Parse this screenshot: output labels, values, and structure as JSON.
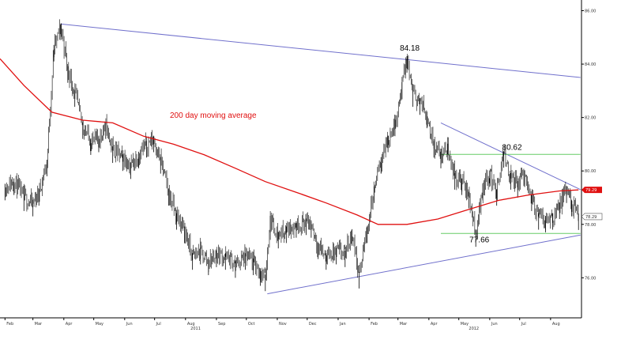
{
  "chart_data": {
    "type": "candlestick",
    "title": "",
    "xlabel": "",
    "ylabel": "",
    "ylim": [
      74.5,
      86.4
    ],
    "y_ticks": [
      "86.00",
      "84.00",
      "82.00",
      "80.00",
      "78.00",
      "76.00"
    ],
    "x_ticks": [
      "Feb",
      "Mar",
      "Apr",
      "May",
      "Jun",
      "Jul",
      "Aug",
      "Sep",
      "Oct",
      "Nov",
      "Dec",
      "Jan",
      "Feb",
      "Mar",
      "Apr",
      "May",
      "Jun",
      "Jul",
      "Aug"
    ],
    "years": [
      "2011",
      "2012"
    ],
    "grid": false,
    "legend": "none",
    "series": [
      {
        "kind": "price",
        "points": [
          [
            "2011-02-01",
            79.4
          ],
          [
            "2011-02-10",
            79.6
          ],
          [
            "2011-02-20",
            79.0
          ],
          [
            "2011-03-01",
            78.8
          ],
          [
            "2011-03-07",
            79.2
          ],
          [
            "2011-03-15",
            80.3
          ],
          [
            "2011-03-22",
            84.6
          ],
          [
            "2011-03-29",
            85.4
          ],
          [
            "2011-04-05",
            83.8
          ],
          [
            "2011-04-12",
            82.9
          ],
          [
            "2011-04-20",
            81.7
          ],
          [
            "2011-04-28",
            81.1
          ],
          [
            "2011-05-06",
            81.2
          ],
          [
            "2011-05-13",
            81.7
          ],
          [
            "2011-05-20",
            80.8
          ],
          [
            "2011-05-30",
            80.5
          ],
          [
            "2011-06-07",
            80.2
          ],
          [
            "2011-06-15",
            80.6
          ],
          [
            "2011-06-23",
            81.0
          ],
          [
            "2011-06-30",
            81.2
          ],
          [
            "2011-07-07",
            80.4
          ],
          [
            "2011-07-15",
            79.2
          ],
          [
            "2011-07-23",
            78.3
          ],
          [
            "2011-07-31",
            77.8
          ],
          [
            "2011-08-08",
            76.8
          ],
          [
            "2011-08-16",
            77.0
          ],
          [
            "2011-08-24",
            76.6
          ],
          [
            "2011-09-01",
            76.9
          ],
          [
            "2011-09-10",
            76.8
          ],
          [
            "2011-09-20",
            76.5
          ],
          [
            "2011-09-30",
            76.8
          ],
          [
            "2011-10-08",
            76.6
          ],
          [
            "2011-10-15",
            76.2
          ],
          [
            "2011-10-20",
            76.0
          ],
          [
            "2011-10-25",
            78.2
          ],
          [
            "2011-11-02",
            77.6
          ],
          [
            "2011-11-10",
            77.8
          ],
          [
            "2011-11-20",
            78.0
          ],
          [
            "2011-11-30",
            78.1
          ],
          [
            "2011-12-05",
            78.0
          ],
          [
            "2011-12-12",
            77.2
          ],
          [
            "2011-12-20",
            76.8
          ],
          [
            "2011-12-30",
            77.0
          ],
          [
            "2012-01-08",
            76.9
          ],
          [
            "2012-01-15",
            77.7
          ],
          [
            "2012-01-22",
            76.1
          ],
          [
            "2012-01-30",
            77.8
          ],
          [
            "2012-02-06",
            79.3
          ],
          [
            "2012-02-13",
            80.4
          ],
          [
            "2012-02-20",
            81.2
          ],
          [
            "2012-02-27",
            81.8
          ],
          [
            "2012-03-05",
            83.2
          ],
          [
            "2012-03-10",
            84.18
          ],
          [
            "2012-03-16",
            82.9
          ],
          [
            "2012-03-23",
            82.6
          ],
          [
            "2012-03-30",
            82.1
          ],
          [
            "2012-04-06",
            81.0
          ],
          [
            "2012-04-13",
            80.6
          ],
          [
            "2012-04-20",
            80.9
          ],
          [
            "2012-04-27",
            79.8
          ],
          [
            "2012-05-04",
            79.6
          ],
          [
            "2012-05-11",
            79.1
          ],
          [
            "2012-05-18",
            77.66
          ],
          [
            "2012-05-25",
            79.4
          ],
          [
            "2012-06-01",
            79.9
          ],
          [
            "2012-06-08",
            79.2
          ],
          [
            "2012-06-15",
            80.62
          ],
          [
            "2012-06-22",
            79.8
          ],
          [
            "2012-06-29",
            79.5
          ],
          [
            "2012-07-06",
            79.9
          ],
          [
            "2012-07-13",
            79.0
          ],
          [
            "2012-07-20",
            78.3
          ],
          [
            "2012-07-27",
            78.2
          ],
          [
            "2012-08-03",
            78.3
          ],
          [
            "2012-08-10",
            78.7
          ],
          [
            "2012-08-17",
            79.3
          ],
          [
            "2012-08-22",
            78.8
          ],
          [
            "2012-08-29",
            78.29
          ]
        ]
      },
      {
        "name": "200 day moving average",
        "kind": "sma",
        "color": "#e01010",
        "points": [
          [
            "2011-01-27",
            84.2
          ],
          [
            "2011-02-20",
            83.2
          ],
          [
            "2011-03-20",
            82.2
          ],
          [
            "2011-04-20",
            81.9
          ],
          [
            "2011-05-20",
            81.8
          ],
          [
            "2011-06-20",
            81.3
          ],
          [
            "2011-07-20",
            81.0
          ],
          [
            "2011-08-20",
            80.6
          ],
          [
            "2011-09-20",
            80.1
          ],
          [
            "2011-10-20",
            79.6
          ],
          [
            "2011-11-20",
            79.2
          ],
          [
            "2011-12-20",
            78.8
          ],
          [
            "2012-01-20",
            78.35
          ],
          [
            "2012-02-10",
            78.0
          ],
          [
            "2012-03-10",
            78.0
          ],
          [
            "2012-04-10",
            78.2
          ],
          [
            "2012-05-10",
            78.55
          ],
          [
            "2012-06-10",
            78.9
          ],
          [
            "2012-07-10",
            79.1
          ],
          [
            "2012-08-10",
            79.25
          ],
          [
            "2012-08-29",
            79.29
          ]
        ]
      }
    ],
    "trendlines": [
      {
        "kind": "resistance",
        "color": "#7070cc",
        "from": [
          "2011-03-29",
          85.5
        ],
        "to": [
          "2012-08-31",
          83.5
        ]
      },
      {
        "kind": "support",
        "color": "#7070cc",
        "from": [
          "2011-10-22",
          75.4
        ],
        "to": [
          "2012-08-31",
          77.6
        ]
      },
      {
        "kind": "wedge-top",
        "color": "#7070cc",
        "from": [
          "2012-04-13",
          81.8
        ],
        "to": [
          "2012-08-31",
          79.3
        ]
      },
      {
        "kind": "horizontal",
        "color": "#66cc66",
        "from": [
          "2012-04-13",
          80.62
        ],
        "to": [
          "2012-08-31",
          80.62
        ]
      },
      {
        "kind": "horizontal",
        "color": "#66cc66",
        "from": [
          "2012-04-13",
          77.66
        ],
        "to": [
          "2012-08-31",
          77.66
        ]
      }
    ],
    "annotations": [
      {
        "text": "84.18",
        "x": "2012-03-10",
        "y": 84.18
      },
      {
        "text": "80.62",
        "x": "2012-06-15",
        "y": 80.62
      },
      {
        "text": "77.66",
        "x": "2012-05-18",
        "y": 77.66
      },
      {
        "text": "200 day moving average",
        "color": "#e01010"
      }
    ],
    "last_values": [
      {
        "text": "79.29",
        "value": 79.29,
        "color": "#e01010"
      },
      {
        "text": "78.29",
        "value": 78.29,
        "color": "#333333"
      }
    ]
  }
}
